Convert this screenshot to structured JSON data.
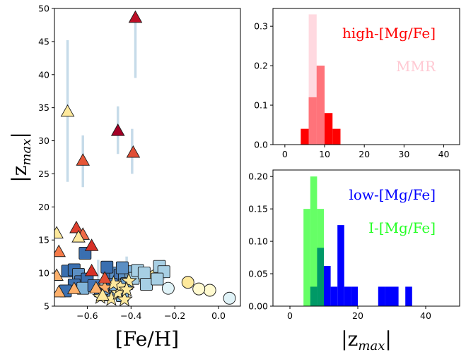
{
  "chart_data": [
    {
      "type": "scatter",
      "xlabel": "[Fe/H]",
      "ylabel": "|z_max|",
      "xlim": [
        -0.75,
        0.1
      ],
      "ylim": [
        5,
        50
      ],
      "xticks": [
        "−0.6",
        "−0.4",
        "−0.2",
        "0.0"
      ],
      "xtick_values": [
        -0.6,
        -0.4,
        -0.2,
        0.0
      ],
      "yticks": [
        "5",
        "10",
        "15",
        "20",
        "25",
        "30",
        "35",
        "40",
        "45",
        "50"
      ],
      "ytick_values": [
        5,
        10,
        15,
        20,
        25,
        30,
        35,
        40,
        45,
        50
      ],
      "errorbar_color": "#c6dbe9",
      "errorbars": [
        {
          "x": -0.38,
          "ylo": 39.5,
          "yhi": 48.5
        },
        {
          "x": -0.69,
          "ylo": 23.8,
          "yhi": 45.2
        },
        {
          "x": -0.46,
          "ylo": 28.0,
          "yhi": 35.2
        },
        {
          "x": -0.62,
          "ylo": 23.0,
          "yhi": 30.8
        },
        {
          "x": -0.395,
          "ylo": 25.0,
          "yhi": 31.8
        },
        {
          "x": -0.42,
          "ylo": 8.0,
          "yhi": 12.5
        },
        {
          "x": -0.55,
          "ylo": 8.0,
          "yhi": 12.0
        },
        {
          "x": -0.25,
          "ylo": 9.0,
          "yhi": 12.0
        }
      ],
      "series": [
        {
          "marker": "triangle",
          "points": [
            {
              "x": -0.38,
              "y": 48.6,
              "color": "#bd0f26"
            },
            {
              "x": -0.46,
              "y": 31.5,
              "color": "#a50026"
            },
            {
              "x": -0.39,
              "y": 28.2,
              "color": "#e04e35"
            },
            {
              "x": -0.62,
              "y": 27.0,
              "color": "#e55637"
            },
            {
              "x": -0.69,
              "y": 34.4,
              "color": "#fee99c"
            },
            {
              "x": -0.65,
              "y": 16.8,
              "color": "#de3f2e"
            },
            {
              "x": -0.62,
              "y": 15.8,
              "color": "#ef6b45"
            },
            {
              "x": -0.64,
              "y": 15.4,
              "color": "#fee99c"
            },
            {
              "x": -0.74,
              "y": 16.0,
              "color": "#fee99c"
            },
            {
              "x": -0.73,
              "y": 13.2,
              "color": "#f57a48"
            },
            {
              "x": -0.58,
              "y": 14.1,
              "color": "#d73027"
            },
            {
              "x": -0.74,
              "y": 9.6,
              "color": "#fdb06b"
            },
            {
              "x": -0.73,
              "y": 7.1,
              "color": "#fdb06b"
            },
            {
              "x": -0.66,
              "y": 7.6,
              "color": "#fdb06b"
            },
            {
              "x": -0.58,
              "y": 10.3,
              "color": "#d73027"
            },
            {
              "x": -0.56,
              "y": 7.7,
              "color": "#fdb06b"
            },
            {
              "x": -0.52,
              "y": 9.2,
              "color": "#e04e35"
            },
            {
              "x": -0.53,
              "y": 6.6,
              "color": "#fee99c"
            }
          ]
        },
        {
          "marker": "square",
          "points": [
            {
              "x": -0.61,
              "y": 13.0,
              "color": "#3a6fb0"
            },
            {
              "x": -0.69,
              "y": 10.3,
              "color": "#3a6fb0"
            },
            {
              "x": -0.66,
              "y": 10.5,
              "color": "#3a6fb0"
            },
            {
              "x": -0.64,
              "y": 9.8,
              "color": "#5b8fc4"
            },
            {
              "x": -0.63,
              "y": 8.7,
              "color": "#4575b4"
            },
            {
              "x": -0.6,
              "y": 9.1,
              "color": "#3a6fb0"
            },
            {
              "x": -0.66,
              "y": 8.2,
              "color": "#3a6fb0"
            },
            {
              "x": -0.62,
              "y": 7.7,
              "color": "#80b3d8"
            },
            {
              "x": -0.7,
              "y": 7.3,
              "color": "#3a6fb0"
            },
            {
              "x": -0.57,
              "y": 8.1,
              "color": "#4575b4"
            },
            {
              "x": -0.54,
              "y": 7.3,
              "color": "#4575b4"
            },
            {
              "x": -0.52,
              "y": 6.7,
              "color": "#6a9fcc"
            },
            {
              "x": -0.5,
              "y": 9.8,
              "color": "#3a6fb0"
            },
            {
              "x": -0.47,
              "y": 10.0,
              "color": "#5b8fc4"
            },
            {
              "x": -0.45,
              "y": 9.7,
              "color": "#4575b4"
            },
            {
              "x": -0.43,
              "y": 9.3,
              "color": "#5b8fc4"
            },
            {
              "x": -0.49,
              "y": 8.3,
              "color": "#4575b4"
            },
            {
              "x": -0.47,
              "y": 7.6,
              "color": "#80b3d8"
            },
            {
              "x": -0.42,
              "y": 8.4,
              "color": "#6a9fcc"
            },
            {
              "x": -0.4,
              "y": 10.2,
              "color": "#80b3d8"
            },
            {
              "x": -0.39,
              "y": 9.2,
              "color": "#a7cfe4"
            },
            {
              "x": -0.37,
              "y": 10.4,
              "color": "#a7cfe4"
            },
            {
              "x": -0.34,
              "y": 10.0,
              "color": "#a7cfe4"
            },
            {
              "x": -0.33,
              "y": 8.3,
              "color": "#a7cfe4"
            },
            {
              "x": -0.27,
              "y": 11.0,
              "color": "#a7cfe4"
            },
            {
              "x": -0.25,
              "y": 10.2,
              "color": "#a7cfe4"
            },
            {
              "x": -0.28,
              "y": 9.1,
              "color": "#a7cfe4"
            },
            {
              "x": -0.44,
              "y": 6.6,
              "color": "#80b3d8"
            },
            {
              "x": -0.51,
              "y": 10.9,
              "color": "#3a6fb0"
            },
            {
              "x": -0.44,
              "y": 10.8,
              "color": "#5b8fc4"
            }
          ]
        },
        {
          "marker": "star",
          "points": [
            {
              "x": -0.49,
              "y": 6.1,
              "color": "#fee99c"
            },
            {
              "x": -0.46,
              "y": 7.0,
              "color": "#fee99c"
            },
            {
              "x": -0.43,
              "y": 6.0,
              "color": "#fee99c"
            },
            {
              "x": -0.41,
              "y": 8.8,
              "color": "#fee99c"
            },
            {
              "x": -0.45,
              "y": 8.0,
              "color": "#fee99c"
            },
            {
              "x": -0.52,
              "y": 7.8,
              "color": "#fdb06b"
            },
            {
              "x": -0.54,
              "y": 6.4,
              "color": "#fee99c"
            },
            {
              "x": -0.42,
              "y": 7.5,
              "color": "#fee99c"
            },
            {
              "x": -0.48,
              "y": 8.4,
              "color": "#fee99c"
            }
          ]
        },
        {
          "marker": "circle",
          "points": [
            {
              "x": 0.05,
              "y": 6.2,
              "color": "#e0f3f8"
            },
            {
              "x": -0.04,
              "y": 7.4,
              "color": "#fffad0"
            },
            {
              "x": -0.09,
              "y": 7.6,
              "color": "#fffad0"
            },
            {
              "x": -0.14,
              "y": 8.6,
              "color": "#fee99c"
            },
            {
              "x": -0.23,
              "y": 7.7,
              "color": "#e0f3f8"
            },
            {
              "x": -0.34,
              "y": 9.4,
              "color": "#fee99c"
            },
            {
              "x": -0.29,
              "y": 9.6,
              "color": "#fee99c"
            }
          ]
        }
      ]
    },
    {
      "type": "bar",
      "subtype": "histogram",
      "xlim": [
        -3,
        44
      ],
      "ylim": [
        0,
        0.345
      ],
      "xticks": [
        "0",
        "10",
        "20",
        "30",
        "40"
      ],
      "xtick_values": [
        0,
        10,
        20,
        30,
        40
      ],
      "yticks": [
        "0.0",
        "0.1",
        "0.2",
        "0.3"
      ],
      "ytick_values": [
        0,
        0.1,
        0.2,
        0.3
      ],
      "legend_placement": "top-right",
      "series": [
        {
          "name": "high-[Mg/Fe]",
          "color": "#ff0000",
          "bin_edges": [
            4,
            6,
            8,
            10,
            12,
            14
          ],
          "values": [
            0.04,
            0.12,
            0.2,
            0.08,
            0.04
          ]
        },
        {
          "name": "MMR",
          "color": "#ffc0cb",
          "opacity": 0.6,
          "bin_edges": [
            6,
            8,
            10
          ],
          "values": [
            0.33,
            0.2
          ]
        }
      ]
    },
    {
      "type": "bar",
      "subtype": "histogram",
      "xlabel": "|z_max|",
      "xlim": [
        -5,
        50
      ],
      "ylim": [
        0,
        0.21
      ],
      "xticks": [
        "0",
        "20",
        "40"
      ],
      "xtick_values": [
        0,
        20,
        40
      ],
      "yticks": [
        "0.00",
        "0.05",
        "0.10",
        "0.15",
        "0.20"
      ],
      "ytick_values": [
        0,
        0.05,
        0.1,
        0.15,
        0.2
      ],
      "legend_placement": "top-right",
      "series": [
        {
          "name": "low-[Mg/Fe]",
          "color": "#0000ff",
          "bin_edges": [
            6,
            8,
            10,
            12,
            14,
            16,
            18,
            20,
            22,
            24,
            26,
            28,
            30,
            32,
            34,
            36
          ],
          "values": [
            0.03,
            0.09,
            0.062,
            0.03,
            0.125,
            0.03,
            0.03,
            0,
            0,
            0,
            0.03,
            0.03,
            0.03,
            0,
            0.03
          ]
        },
        {
          "name": "I-[Mg/Fe]",
          "color": "#00ff00",
          "opacity": 0.6,
          "bin_edges": [
            4,
            6,
            8,
            10
          ],
          "values": [
            0.15,
            0.2,
            0.15
          ]
        }
      ]
    }
  ]
}
